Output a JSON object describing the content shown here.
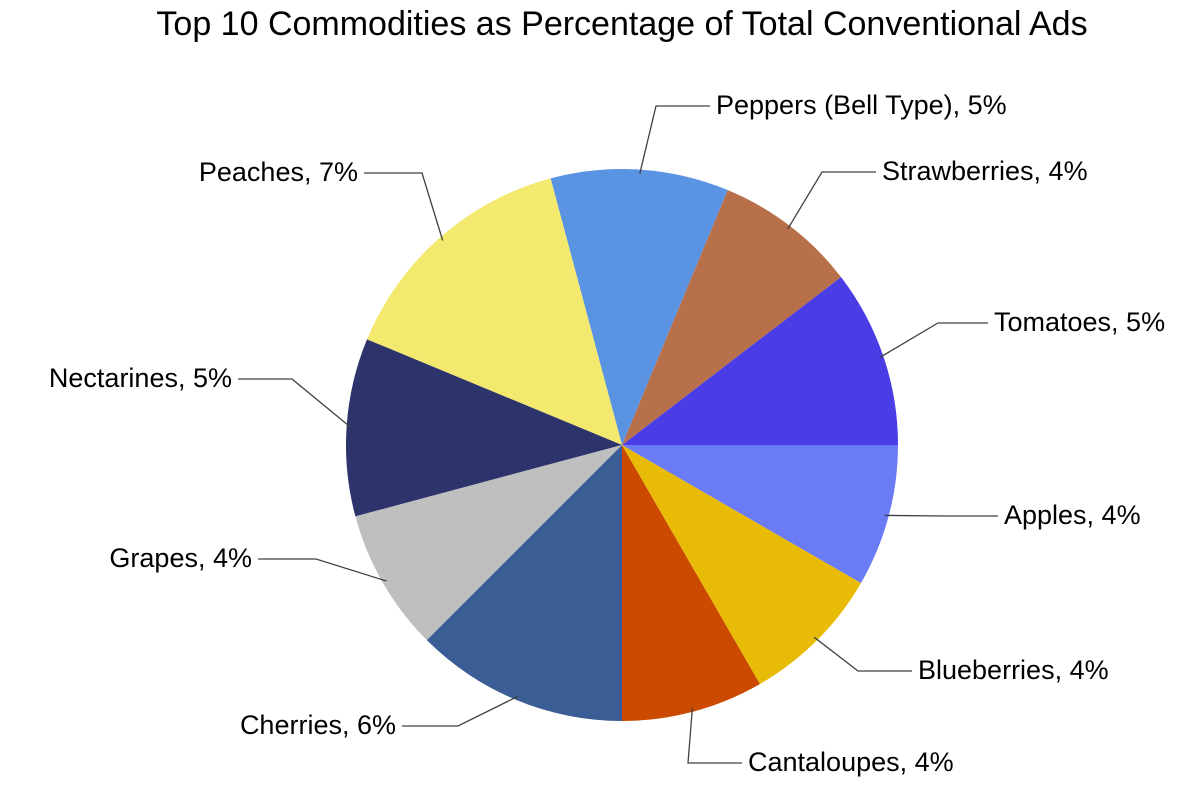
{
  "chart_data": {
    "type": "pie",
    "title": "Top 10 Commodities as Percentage of Total Conventional Ads",
    "legend": "none (category labels with leader lines)",
    "slices": [
      {
        "category": "Tomatoes",
        "value": 5,
        "label": "Tomatoes, 5%",
        "color": "#4a3de6"
      },
      {
        "category": "Strawberries",
        "value": 4,
        "label": "Strawberries, 4%",
        "color": "#b8704a"
      },
      {
        "category": "Peppers (Bell Type)",
        "value": 5,
        "label": "Peppers (Bell Type), 5%",
        "color": "#5b93e3"
      },
      {
        "category": "Peaches",
        "value": 7,
        "label": "Peaches, 7%",
        "color": "#f2e96e"
      },
      {
        "category": "Nectarines",
        "value": 5,
        "label": "Nectarines, 5%",
        "color": "#2d336b"
      },
      {
        "category": "Grapes",
        "value": 4,
        "label": "Grapes, 4%",
        "color": "#bfbfbf"
      },
      {
        "category": "Cherries",
        "value": 6,
        "label": "Cherries, 6%",
        "color": "#3a5d96"
      },
      {
        "category": "Cantaloupes",
        "value": 4,
        "label": "Cantaloupes, 4%",
        "color": "#cc4a00"
      },
      {
        "category": "Blueberries",
        "value": 4,
        "label": "Blueberries, 4%",
        "color": "#e8bb07"
      },
      {
        "category": "Apples",
        "value": 4,
        "label": "Apples, 4%",
        "color": "#6b7af5"
      }
    ]
  }
}
